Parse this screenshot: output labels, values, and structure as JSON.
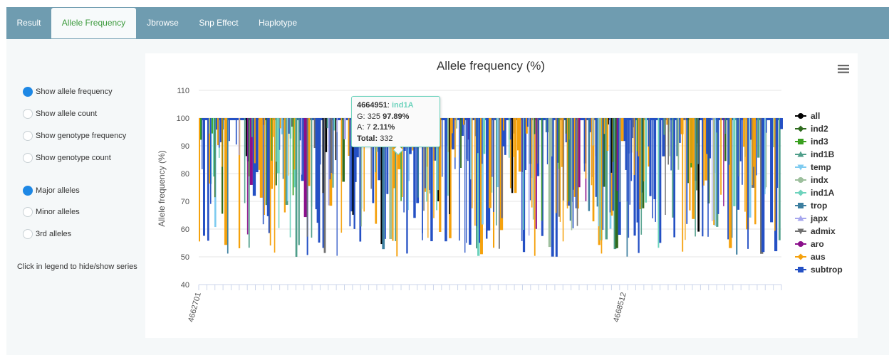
{
  "tabs": [
    {
      "label": "Result",
      "active": false
    },
    {
      "label": "Allele Frequency",
      "active": true
    },
    {
      "label": "Jbrowse",
      "active": false
    },
    {
      "label": "Snp Effect",
      "active": false
    },
    {
      "label": "Haplotype",
      "active": false
    }
  ],
  "options": {
    "display": [
      {
        "label": "Show allele frequency",
        "checked": true
      },
      {
        "label": "Show allele count",
        "checked": false
      },
      {
        "label": "Show genotype frequency",
        "checked": false
      },
      {
        "label": "Show genotype count",
        "checked": false
      }
    ],
    "alleles": [
      {
        "label": "Major alleles",
        "checked": true
      },
      {
        "label": "Minor alleles",
        "checked": false
      },
      {
        "label": "3rd alleles",
        "checked": false
      }
    ],
    "hint": "Click in legend to hide/show series"
  },
  "tooltip": {
    "position": "4664951",
    "series": "ind1A",
    "line1_allele": "G:",
    "line1_count": "325",
    "line1_pct": "97.89%",
    "line2_allele": "A:",
    "line2_count": "7",
    "line2_pct": "2.11%",
    "total_label": "Total:",
    "total_value": "332",
    "series_color": "#6ed3bd"
  },
  "chart_data": {
    "type": "area",
    "title": "Allele frequency (%)",
    "xlabel": "",
    "ylabel": "Allele frequency (%)",
    "ylim": [
      40,
      110
    ],
    "yticks": [
      40,
      50,
      60,
      70,
      80,
      90,
      100,
      110
    ],
    "x_tick_labels": [
      "4662701",
      "4668512"
    ],
    "grid": true,
    "legend_position": "right",
    "series": [
      {
        "name": "all",
        "color": "#000000",
        "marker": "circle"
      },
      {
        "name": "ind2",
        "color": "#2f6b1e",
        "marker": "diamond"
      },
      {
        "name": "ind3",
        "color": "#3aa020",
        "marker": "square"
      },
      {
        "name": "ind1B",
        "color": "#4f9e8a",
        "marker": "triangle"
      },
      {
        "name": "temp",
        "color": "#7ecbf0",
        "marker": "triangle-down"
      },
      {
        "name": "indx",
        "color": "#9dbf9d",
        "marker": "circle"
      },
      {
        "name": "ind1A",
        "color": "#6ed3bd",
        "marker": "diamond"
      },
      {
        "name": "trop",
        "color": "#3d7fa0",
        "marker": "square"
      },
      {
        "name": "japx",
        "color": "#a7a7ee",
        "marker": "triangle"
      },
      {
        "name": "admix",
        "color": "#707070",
        "marker": "triangle-down"
      },
      {
        "name": "aro",
        "color": "#8b0f8b",
        "marker": "circle"
      },
      {
        "name": "aus",
        "color": "#f5a10c",
        "marker": "diamond"
      },
      {
        "name": "subtrop",
        "color": "#2450c4",
        "marker": "square"
      }
    ]
  }
}
